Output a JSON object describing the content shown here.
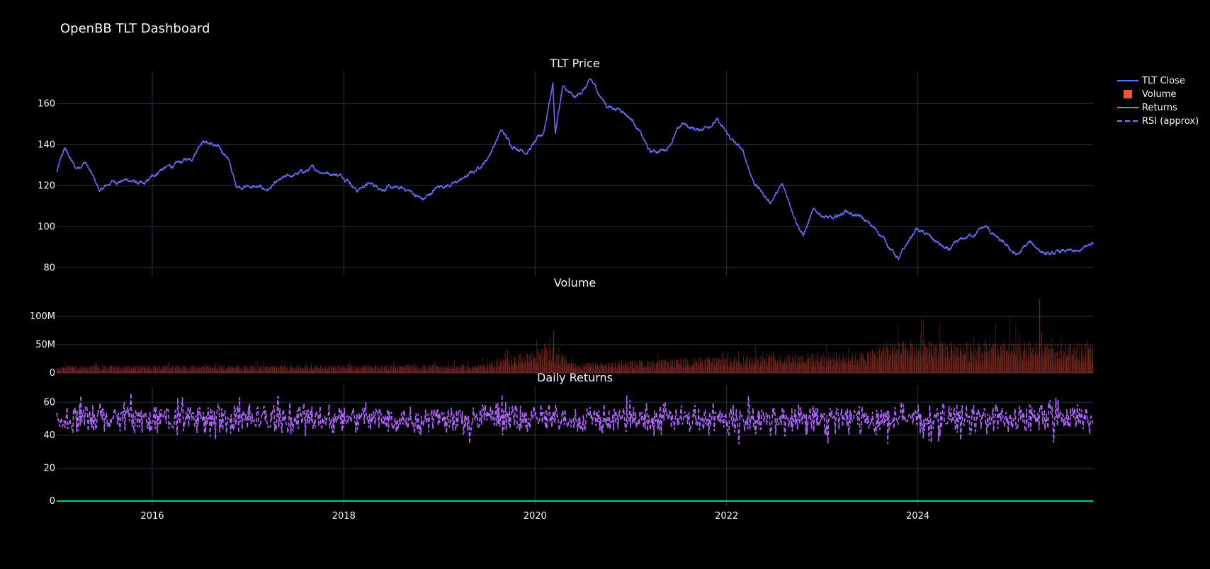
{
  "title": "OpenBB TLT Dashboard",
  "colors": {
    "background": "#000000",
    "grid": "#283442",
    "text": "#f2f5fa",
    "price_line": "#636efa",
    "volume_bar": "#EF553B",
    "returns_line": "#00cc96",
    "rsi_line": "#ab63fa"
  },
  "legend": [
    {
      "label": "TLT Close",
      "symbol": "line",
      "color": "#636efa"
    },
    {
      "label": "Volume",
      "symbol": "square",
      "color": "#EF553B"
    },
    {
      "label": "Returns",
      "symbol": "line",
      "color": "#00cc96"
    },
    {
      "label": "RSI (approx)",
      "symbol": "dash",
      "color": "#ab63fa"
    }
  ],
  "x_axis": {
    "range": [
      "2015-01-01",
      "2025-10-31"
    ],
    "ticks": [
      "2016",
      "2018",
      "2020",
      "2022",
      "2024"
    ]
  },
  "chart_data": [
    {
      "type": "line",
      "title": "TLT Price",
      "series": [
        {
          "name": "TLT Close",
          "color": "#636efa"
        }
      ],
      "ylim": [
        76,
        176
      ],
      "yticks": [
        80,
        100,
        120,
        140,
        160
      ],
      "grid": true,
      "anchors": [
        [
          "2015-01-02",
          127
        ],
        [
          "2015-02-01",
          138
        ],
        [
          "2015-03-15",
          128
        ],
        [
          "2015-04-20",
          132
        ],
        [
          "2015-06-15",
          117
        ],
        [
          "2015-08-01",
          122
        ],
        [
          "2015-10-01",
          123
        ],
        [
          "2015-12-01",
          120
        ],
        [
          "2016-02-01",
          128
        ],
        [
          "2016-04-01",
          130
        ],
        [
          "2016-06-01",
          134
        ],
        [
          "2016-07-10",
          143
        ],
        [
          "2016-09-01",
          139
        ],
        [
          "2016-10-15",
          134
        ],
        [
          "2016-11-15",
          120
        ],
        [
          "2017-01-01",
          120
        ],
        [
          "2017-03-15",
          118
        ],
        [
          "2017-06-01",
          124
        ],
        [
          "2017-09-01",
          128
        ],
        [
          "2017-12-01",
          126
        ],
        [
          "2018-01-15",
          124
        ],
        [
          "2018-02-20",
          118
        ],
        [
          "2018-04-01",
          121
        ],
        [
          "2018-06-01",
          119
        ],
        [
          "2018-09-01",
          118
        ],
        [
          "2018-11-01",
          113
        ],
        [
          "2019-01-01",
          120
        ],
        [
          "2019-03-01",
          121
        ],
        [
          "2019-05-15",
          127
        ],
        [
          "2019-07-01",
          133
        ],
        [
          "2019-08-25",
          147
        ],
        [
          "2019-10-01",
          140
        ],
        [
          "2019-12-01",
          137
        ],
        [
          "2020-02-01",
          145
        ],
        [
          "2020-03-09",
          170
        ],
        [
          "2020-03-18",
          146
        ],
        [
          "2020-04-15",
          168
        ],
        [
          "2020-06-01",
          162
        ],
        [
          "2020-08-01",
          171
        ],
        [
          "2020-10-01",
          159
        ],
        [
          "2020-12-01",
          157
        ],
        [
          "2021-01-15",
          151
        ],
        [
          "2021-03-15",
          136
        ],
        [
          "2021-05-15",
          138
        ],
        [
          "2021-07-15",
          150
        ],
        [
          "2021-09-15",
          147
        ],
        [
          "2021-11-25",
          152
        ],
        [
          "2022-01-01",
          145
        ],
        [
          "2022-03-01",
          137
        ],
        [
          "2022-04-15",
          122
        ],
        [
          "2022-06-15",
          112
        ],
        [
          "2022-08-01",
          120
        ],
        [
          "2022-10-20",
          96
        ],
        [
          "2022-12-01",
          108
        ],
        [
          "2023-02-15",
          103
        ],
        [
          "2023-04-01",
          108
        ],
        [
          "2023-06-01",
          104
        ],
        [
          "2023-08-15",
          96
        ],
        [
          "2023-10-20",
          84
        ],
        [
          "2023-12-25",
          99
        ],
        [
          "2024-02-15",
          95
        ],
        [
          "2024-04-25",
          88
        ],
        [
          "2024-06-15",
          93
        ],
        [
          "2024-09-15",
          100
        ],
        [
          "2024-11-15",
          92
        ],
        [
          "2025-01-15",
          86
        ],
        [
          "2025-03-01",
          92
        ],
        [
          "2025-05-20",
          86
        ],
        [
          "2025-07-15",
          88
        ],
        [
          "2025-09-01",
          87
        ],
        [
          "2025-10-31",
          92
        ]
      ]
    },
    {
      "type": "bar",
      "title": "Volume",
      "series": [
        {
          "name": "Volume",
          "color": "#EF553B"
        }
      ],
      "ylim": [
        0,
        140000000
      ],
      "yticks": [
        0,
        50000000,
        100000000
      ],
      "ytick_labels": [
        "0",
        "50M",
        "100M"
      ],
      "grid": true,
      "level_anchors": [
        [
          "2015-01-01",
          11000000
        ],
        [
          "2019-06-01",
          12000000
        ],
        [
          "2020-03-01",
          40000000
        ],
        [
          "2020-06-01",
          14000000
        ],
        [
          "2021-06-01",
          20000000
        ],
        [
          "2022-06-01",
          28000000
        ],
        [
          "2023-06-01",
          30000000
        ],
        [
          "2023-09-01",
          45000000
        ],
        [
          "2024-06-01",
          45000000
        ],
        [
          "2025-10-31",
          42000000
        ]
      ],
      "peaks": [
        [
          "2020-03-12",
          75000000
        ],
        [
          "2023-10-15",
          85000000
        ],
        [
          "2024-01-15",
          95000000
        ],
        [
          "2024-12-15",
          98000000
        ],
        [
          "2025-04-10",
          130000000
        ]
      ]
    },
    {
      "type": "line",
      "title": "Daily Returns",
      "series": [
        {
          "name": "Returns",
          "color": "#00cc96",
          "values": [
            0
          ]
        },
        {
          "name": "RSI (approx)",
          "color": "#ab63fa",
          "dash": "dash",
          "center": 50,
          "range": [
            33,
            66
          ]
        }
      ],
      "ylim": [
        -3,
        70
      ],
      "yticks": [
        0,
        20,
        40,
        60
      ],
      "grid": true
    }
  ]
}
